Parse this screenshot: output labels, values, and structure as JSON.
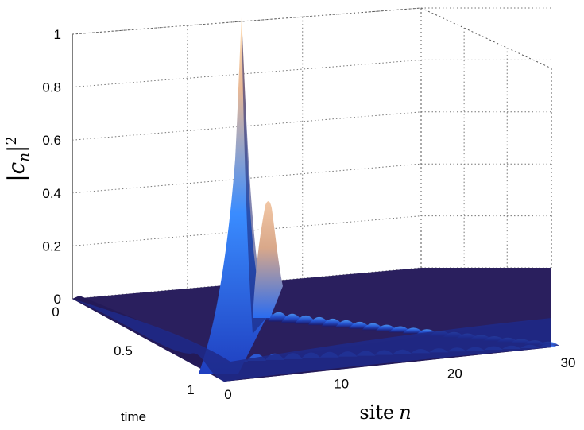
{
  "chart_data": {
    "type": "surface",
    "title": "",
    "xlabel": "site n",
    "ylabel": "time",
    "zlabel": "|c_n|^2",
    "xlim": [
      0,
      30
    ],
    "ylim": [
      0,
      1
    ],
    "zlim": [
      0,
      1
    ],
    "x_ticks": [
      "0",
      "10",
      "20",
      "30"
    ],
    "y_ticks": [
      "0",
      "0.5",
      "1"
    ],
    "z_ticks": [
      "0",
      "0.2",
      "0.4",
      "0.6",
      "0.8",
      "1"
    ],
    "grid": true,
    "colormap": [
      "#1a0f4a",
      "#1e2a8a",
      "#1f5fd8",
      "#4aa8ff",
      "#e6b48f",
      "#ffd9b0"
    ],
    "peaks": [
      {
        "site": 0,
        "time": 0,
        "value": 1.0
      },
      {
        "site": 3,
        "time": 0.1,
        "value": 0.35
      }
    ]
  },
  "labels": {
    "x_axis_main": "site",
    "x_axis_var": "n",
    "y_axis": "time",
    "z_axis_c": "c",
    "z_axis_sub": "n",
    "z_axis_exp": "2"
  }
}
